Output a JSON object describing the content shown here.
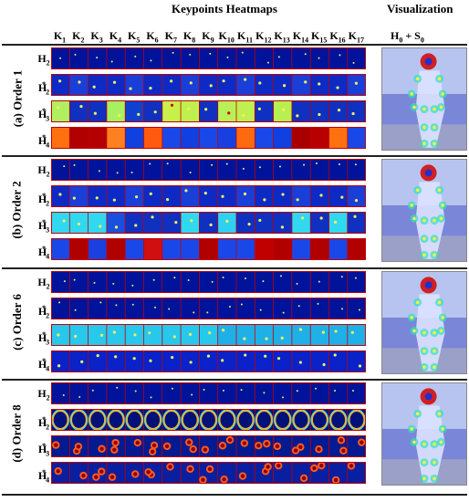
{
  "header": {
    "title": "Keypoints Heatmaps",
    "viz_title": "Visualization",
    "viz_sub_main": "H",
    "viz_sub_sub": "0",
    "viz_sub_op": " + S",
    "viz_sub_sub2": "0",
    "k_letter": "K",
    "k_subs": [
      "1",
      "2",
      "3",
      "4",
      "5",
      "6",
      "7",
      "8",
      "9",
      "10",
      "11",
      "12",
      "13",
      "14",
      "15",
      "16",
      "17"
    ]
  },
  "groups": [
    {
      "label": "(a) Order 1",
      "rows": [
        {
          "main": "H",
          "sub": "2",
          "sup": ""
        },
        {
          "main": "H",
          "sub": "2",
          "sup": "*"
        },
        {
          "main": "H",
          "sub": "3",
          "sup": "*"
        },
        {
          "main": "H",
          "sub": "4",
          "sup": "*"
        }
      ],
      "row_styles": [
        "blue",
        "blueish",
        "mixed_a",
        "hot_a"
      ]
    },
    {
      "label": "(b) Order 2",
      "rows": [
        {
          "main": "H",
          "sub": "2",
          "sup": ""
        },
        {
          "main": "H",
          "sub": "2",
          "sup": "*"
        },
        {
          "main": "H",
          "sub": "3",
          "sup": "*"
        },
        {
          "main": "H",
          "sub": "4",
          "sup": "*"
        }
      ],
      "row_styles": [
        "blue",
        "blueish",
        "mixed_b",
        "hot_b"
      ]
    },
    {
      "label": "(c) Order 6",
      "rows": [
        {
          "main": "H",
          "sub": "2",
          "sup": ""
        },
        {
          "main": "H",
          "sub": "2",
          "sup": "*"
        },
        {
          "main": "H",
          "sub": "3",
          "sup": "*"
        },
        {
          "main": "H",
          "sub": "4",
          "sup": "*"
        }
      ],
      "row_styles": [
        "blue",
        "blue",
        "cyan",
        "blue_spots"
      ]
    },
    {
      "label": "(d) Order 8",
      "rows": [
        {
          "main": "H",
          "sub": "2",
          "sup": ""
        },
        {
          "main": "H",
          "sub": "2",
          "sup": "*"
        },
        {
          "main": "H",
          "sub": "3",
          "sup": "*"
        },
        {
          "main": "H",
          "sub": "4",
          "sup": "*"
        }
      ],
      "row_styles": [
        "blue",
        "oval",
        "blob",
        "blob2"
      ]
    }
  ],
  "colors": {
    "deep_blue": "#00008f",
    "blue": "#0a1ab8",
    "cyan": "#2fd6f0",
    "green_yellow": "#c8f04a",
    "orange": "#ff6a10",
    "dark_red": "#a80000",
    "red_line": "#c00000"
  }
}
